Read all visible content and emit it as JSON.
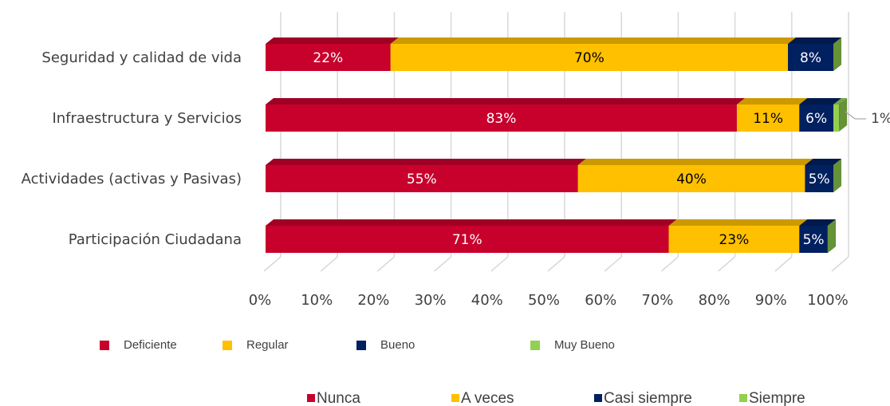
{
  "chart_data": {
    "type": "bar",
    "orientation": "horizontal",
    "stacked": true,
    "three_d": true,
    "categories": [
      "Seguridad y calidad de vida",
      "Infraestructura y Servicios",
      "Actividades (activas y Pasivas)",
      "Participación Ciudadana"
    ],
    "series": [
      {
        "name": "Nunca",
        "color": "#c8002c",
        "values": [
          22,
          83,
          55,
          71
        ],
        "value_labels": [
          "22%",
          "83%",
          "55%",
          "71%"
        ]
      },
      {
        "name": "A veces",
        "color": "#ffc000",
        "values": [
          70,
          11,
          40,
          23
        ],
        "value_labels": [
          "70%",
          "11%",
          "40%",
          "23%"
        ]
      },
      {
        "name": "Casi siempre",
        "color": "#002060",
        "values": [
          8,
          6,
          5,
          5
        ],
        "value_labels": [
          "8%",
          "6%",
          "5%",
          "5%"
        ]
      },
      {
        "name": "Siempre",
        "color": "#92d050",
        "values": [
          0,
          1,
          0,
          0
        ],
        "value_labels": [
          null,
          "1%",
          null,
          null
        ]
      }
    ],
    "legend_alt": [
      "Deficiente",
      "Regular",
      "Bueno",
      "Muy Bueno"
    ],
    "xlim": [
      0,
      100
    ],
    "xticks": [
      {
        "value": 0,
        "label": "0%"
      },
      {
        "value": 10,
        "label": "10%"
      },
      {
        "value": 20,
        "label": "20%"
      },
      {
        "value": 30,
        "label": "30%"
      },
      {
        "value": 40,
        "label": "40%"
      },
      {
        "value": 50,
        "label": "50%"
      },
      {
        "value": 60,
        "label": "60%"
      },
      {
        "value": 70,
        "label": "70%"
      },
      {
        "value": 80,
        "label": "80%"
      },
      {
        "value": 90,
        "label": "90%"
      },
      {
        "value": 100,
        "label": "100%"
      }
    ],
    "grid": true
  }
}
